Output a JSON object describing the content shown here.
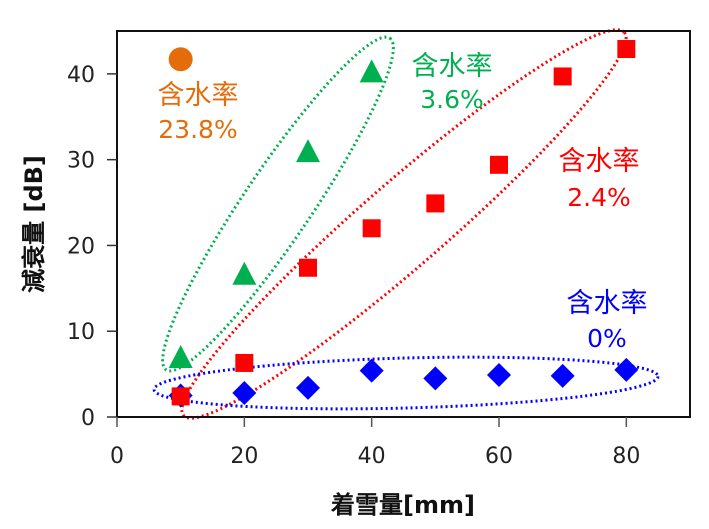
{
  "chart_data": {
    "type": "scatter",
    "title": "",
    "xlabel": "着雪量[mm]",
    "ylabel": "減衰量 [dB]",
    "xlim": [
      0,
      90
    ],
    "ylim": [
      0,
      45
    ],
    "xticks": [
      0,
      20,
      40,
      60,
      80
    ],
    "xtick_labels": [
      "0",
      "20",
      "40",
      "60",
      "80"
    ],
    "yticks": [
      0,
      10,
      20,
      30,
      40
    ],
    "ytick_labels": [
      "0",
      "10",
      "20",
      "30",
      "40"
    ],
    "grid": false,
    "legend": "none",
    "series": [
      {
        "name": "含水率 0%",
        "marker": "diamond",
        "color": "#0000FF",
        "x": [
          10,
          20,
          30,
          40,
          50,
          60,
          70,
          80
        ],
        "y": [
          2.5,
          2.8,
          3.4,
          5.4,
          4.5,
          4.9,
          4.8,
          5.5
        ]
      },
      {
        "name": "含水率 2.4%",
        "marker": "square",
        "color": "#FF0000",
        "x": [
          10,
          20,
          30,
          40,
          50,
          60,
          70,
          80
        ],
        "y": [
          2.4,
          6.3,
          17.4,
          22.0,
          24.9,
          29.4,
          39.7,
          42.9
        ]
      },
      {
        "name": "含水率 3.6%",
        "marker": "triangle",
        "color": "#00B050",
        "x": [
          10,
          20,
          30,
          40
        ],
        "y": [
          7.0,
          16.7,
          31.0,
          40.3
        ]
      },
      {
        "name": "含水率 23.8%",
        "marker": "circle",
        "color": "#E46C0A",
        "x": [
          10
        ],
        "y": [
          41.7
        ]
      }
    ],
    "annotations": [
      {
        "series": "含水率 23.8%",
        "line1": "含水率",
        "line2": "23.8%",
        "color": "#E46C0A"
      },
      {
        "series": "含水率 3.6%",
        "line1": "含水率",
        "line2": "3.6%",
        "color": "#00B050"
      },
      {
        "series": "含水率 2.4%",
        "line1": "含水率",
        "line2": "2.4%",
        "color": "#FF0000"
      },
      {
        "series": "含水率 0%",
        "line1": "含水率",
        "line2": "0%",
        "color": "#0000FF"
      }
    ],
    "group_ellipses": [
      {
        "series": "含水率 3.6%",
        "style": "dotted",
        "color": "#00B050"
      },
      {
        "series": "含水率 2.4%",
        "style": "dotted",
        "color": "#FF0000"
      },
      {
        "series": "含水率 0%",
        "style": "dotted",
        "color": "#0000FF"
      }
    ]
  }
}
